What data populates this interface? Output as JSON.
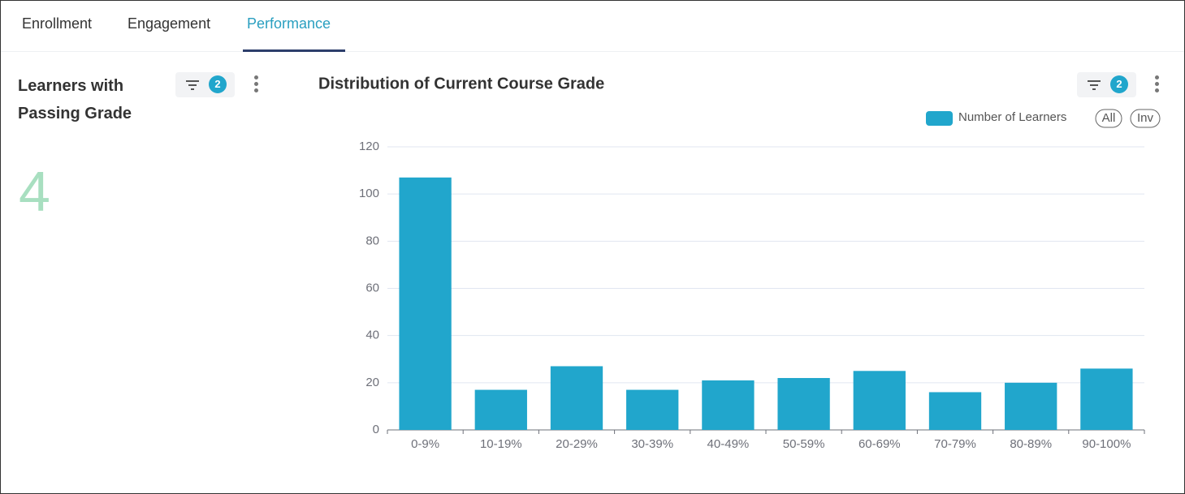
{
  "tabs": [
    "Enrollment",
    "Engagement",
    "Performance"
  ],
  "kpi": {
    "title": "Learners with Passing Grade",
    "filter_count": 2,
    "value": 4
  },
  "chart_filter_count": 2,
  "chart_data": {
    "type": "bar",
    "title": "Distribution of Current Course Grade",
    "categories": [
      "0-9%",
      "10-19%",
      "20-29%",
      "30-39%",
      "40-49%",
      "50-59%",
      "60-69%",
      "70-79%",
      "80-89%",
      "90-100%"
    ],
    "series": [
      {
        "name": "Number of Learners",
        "color": "#21a6cc",
        "values": [
          107,
          17,
          27,
          17,
          21,
          22,
          25,
          16,
          20,
          26
        ]
      }
    ],
    "ylim": [
      0,
      120
    ],
    "yticks": [
      0,
      20,
      40,
      60,
      80,
      100,
      120
    ],
    "grid": true,
    "legend": "top-right",
    "legend_buttons": [
      "All",
      "Inv"
    ]
  }
}
